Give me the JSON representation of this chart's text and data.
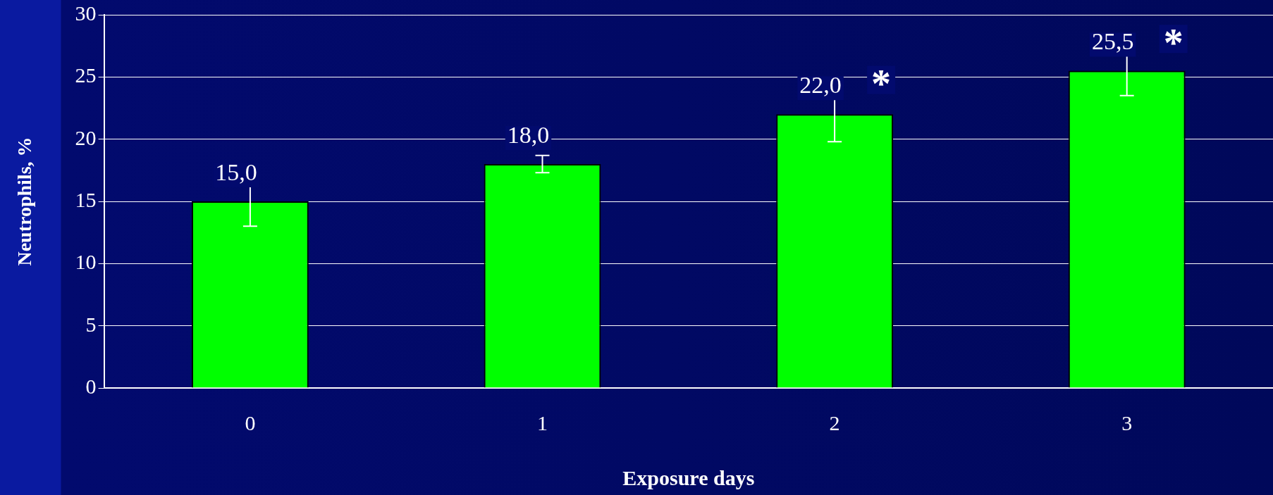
{
  "chart_data": {
    "type": "bar",
    "xlabel": "Exposure days",
    "ylabel": "Neutrophils, %",
    "categories": [
      "0",
      "1",
      "2",
      "3"
    ],
    "values": [
      15.0,
      18.0,
      22.0,
      25.5
    ],
    "errors": [
      2.0,
      0.7,
      2.2,
      2.0
    ],
    "value_labels": [
      "15,0",
      "18,0",
      "22,0",
      "25,5"
    ],
    "color": "#00ff00",
    "ylim": [
      0,
      30
    ],
    "yticks": [
      0,
      5,
      10,
      15,
      20,
      25,
      30
    ],
    "grid": "y",
    "legend": false,
    "annotations": [
      "*",
      "*"
    ]
  }
}
